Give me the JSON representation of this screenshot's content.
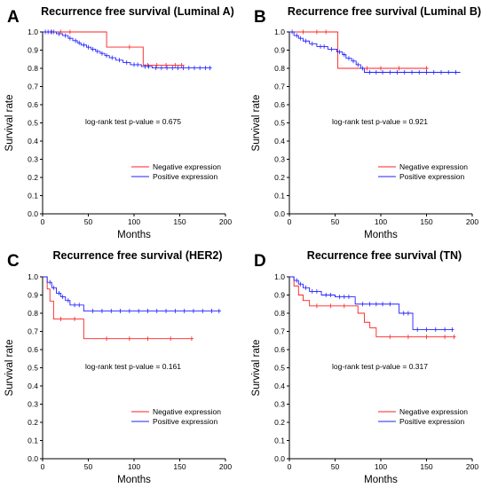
{
  "colors": {
    "negative": "#ff2020",
    "positive": "#2020ff",
    "axis": "#000000"
  },
  "chart_data": [
    {
      "type": "line",
      "subtype": "kaplan-meier step",
      "panel_label": "A",
      "title": "Recurrence free survival (Luminal A)",
      "xlabel": "Months",
      "ylabel": "Survival rate",
      "xlim": [
        0,
        200
      ],
      "ylim": [
        0,
        1.0
      ],
      "xticks": [
        "0",
        "50",
        "100",
        "150",
        "200"
      ],
      "yticks": [
        "0.0",
        "0.1",
        "0.2",
        "0.3",
        "0.4",
        "0.5",
        "0.6",
        "0.7",
        "0.8",
        "0.9",
        "1.0"
      ],
      "annotation": "log-rank test p-value = 0.675",
      "legend": [
        "Negative expression",
        "Positive expression"
      ],
      "legend_position": "bottom-right",
      "series": [
        {
          "name": "Negative expression",
          "color_key": "negative",
          "steps": [
            [
              0,
              1.0
            ],
            [
              70,
              0.917
            ],
            [
              110,
              0.817
            ],
            [
              155,
              0.817
            ]
          ],
          "censors": [
            [
              10,
              1.0
            ],
            [
              20,
              1.0
            ],
            [
              30,
              1.0
            ],
            [
              95,
              0.917
            ],
            [
              115,
              0.817
            ],
            [
              125,
              0.817
            ],
            [
              135,
              0.817
            ],
            [
              145,
              0.817
            ],
            [
              152,
              0.817
            ]
          ]
        },
        {
          "name": "Positive expression",
          "color_key": "positive",
          "steps": [
            [
              0,
              1.0
            ],
            [
              15,
              0.99
            ],
            [
              22,
              0.98
            ],
            [
              28,
              0.965
            ],
            [
              33,
              0.952
            ],
            [
              38,
              0.94
            ],
            [
              42,
              0.928
            ],
            [
              48,
              0.916
            ],
            [
              53,
              0.905
            ],
            [
              58,
              0.893
            ],
            [
              63,
              0.882
            ],
            [
              68,
              0.87
            ],
            [
              73,
              0.858
            ],
            [
              80,
              0.845
            ],
            [
              88,
              0.832
            ],
            [
              96,
              0.82
            ],
            [
              108,
              0.81
            ],
            [
              120,
              0.802
            ],
            [
              185,
              0.802
            ]
          ],
          "censors": [
            [
              3,
              1.0
            ],
            [
              6,
              1.0
            ],
            [
              9,
              1.0
            ],
            [
              12,
              1.0
            ],
            [
              18,
              0.99
            ],
            [
              25,
              0.98
            ],
            [
              30,
              0.965
            ],
            [
              36,
              0.952
            ],
            [
              40,
              0.94
            ],
            [
              45,
              0.928
            ],
            [
              50,
              0.916
            ],
            [
              55,
              0.905
            ],
            [
              60,
              0.893
            ],
            [
              65,
              0.882
            ],
            [
              70,
              0.87
            ],
            [
              76,
              0.858
            ],
            [
              84,
              0.845
            ],
            [
              92,
              0.832
            ],
            [
              100,
              0.82
            ],
            [
              104,
              0.82
            ],
            [
              112,
              0.81
            ],
            [
              116,
              0.81
            ],
            [
              124,
              0.802
            ],
            [
              130,
              0.802
            ],
            [
              136,
              0.802
            ],
            [
              142,
              0.802
            ],
            [
              148,
              0.802
            ],
            [
              154,
              0.802
            ],
            [
              160,
              0.802
            ],
            [
              166,
              0.802
            ],
            [
              172,
              0.802
            ],
            [
              178,
              0.802
            ],
            [
              183,
              0.802
            ]
          ]
        }
      ]
    },
    {
      "type": "line",
      "subtype": "kaplan-meier step",
      "panel_label": "B",
      "title": "Recurrence free survival (Luminal B)",
      "xlabel": "Months",
      "ylabel": "Survival rate",
      "xlim": [
        0,
        200
      ],
      "ylim": [
        0,
        1.0
      ],
      "xticks": [
        "0",
        "50",
        "100",
        "150",
        "200"
      ],
      "yticks": [
        "0.0",
        "0.1",
        "0.2",
        "0.3",
        "0.4",
        "0.5",
        "0.6",
        "0.7",
        "0.8",
        "0.9",
        "1.0"
      ],
      "annotation": "log-rank test p-value = 0.921",
      "legend": [
        "Negative expression",
        "Positive expression"
      ],
      "legend_position": "bottom-right",
      "series": [
        {
          "name": "Negative expression",
          "color_key": "negative",
          "steps": [
            [
              0,
              1.0
            ],
            [
              53,
              0.8
            ],
            [
              152,
              0.8
            ]
          ],
          "censors": [
            [
              15,
              1.0
            ],
            [
              30,
              1.0
            ],
            [
              40,
              1.0
            ],
            [
              85,
              0.8
            ],
            [
              100,
              0.8
            ],
            [
              120,
              0.8
            ],
            [
              150,
              0.8
            ]
          ]
        },
        {
          "name": "Positive expression",
          "color_key": "positive",
          "steps": [
            [
              0,
              1.0
            ],
            [
              5,
              0.98
            ],
            [
              10,
              0.965
            ],
            [
              15,
              0.95
            ],
            [
              22,
              0.935
            ],
            [
              30,
              0.92
            ],
            [
              42,
              0.905
            ],
            [
              52,
              0.89
            ],
            [
              58,
              0.875
            ],
            [
              62,
              0.855
            ],
            [
              68,
              0.84
            ],
            [
              73,
              0.82
            ],
            [
              78,
              0.8
            ],
            [
              82,
              0.778
            ],
            [
              187,
              0.778
            ]
          ],
          "censors": [
            [
              3,
              1.0
            ],
            [
              8,
              0.98
            ],
            [
              12,
              0.965
            ],
            [
              18,
              0.95
            ],
            [
              25,
              0.935
            ],
            [
              34,
              0.92
            ],
            [
              38,
              0.92
            ],
            [
              46,
              0.905
            ],
            [
              55,
              0.89
            ],
            [
              60,
              0.875
            ],
            [
              65,
              0.855
            ],
            [
              70,
              0.84
            ],
            [
              75,
              0.82
            ],
            [
              80,
              0.8
            ],
            [
              88,
              0.778
            ],
            [
              95,
              0.778
            ],
            [
              102,
              0.778
            ],
            [
              110,
              0.778
            ],
            [
              118,
              0.778
            ],
            [
              126,
              0.778
            ],
            [
              134,
              0.778
            ],
            [
              142,
              0.778
            ],
            [
              150,
              0.778
            ],
            [
              158,
              0.778
            ],
            [
              166,
              0.778
            ],
            [
              174,
              0.778
            ],
            [
              182,
              0.778
            ]
          ]
        }
      ]
    },
    {
      "type": "line",
      "subtype": "kaplan-meier step",
      "panel_label": "C",
      "title": "Recurrence free survival (HER2)",
      "xlabel": "Months",
      "ylabel": "Survival rate",
      "xlim": [
        0,
        200
      ],
      "ylim": [
        0,
        1.0
      ],
      "xticks": [
        "0",
        "50",
        "100",
        "150",
        "200"
      ],
      "yticks": [
        "0.0",
        "0.1",
        "0.2",
        "0.3",
        "0.4",
        "0.5",
        "0.6",
        "0.7",
        "0.8",
        "0.9",
        "1.0"
      ],
      "annotation": "log-rank test p-value = 0.161",
      "legend": [
        "Negative expression",
        "Positive expression"
      ],
      "legend_position": "bottom-right",
      "series": [
        {
          "name": "Negative expression",
          "color_key": "negative",
          "steps": [
            [
              0,
              1.0
            ],
            [
              5,
              0.933
            ],
            [
              8,
              0.867
            ],
            [
              12,
              0.768
            ],
            [
              45,
              0.66
            ],
            [
              165,
              0.66
            ]
          ],
          "censors": [
            [
              20,
              0.768
            ],
            [
              35,
              0.768
            ],
            [
              70,
              0.66
            ],
            [
              95,
              0.66
            ],
            [
              115,
              0.66
            ],
            [
              140,
              0.66
            ],
            [
              163,
              0.66
            ]
          ]
        },
        {
          "name": "Positive expression",
          "color_key": "positive",
          "steps": [
            [
              0,
              1.0
            ],
            [
              5,
              0.97
            ],
            [
              10,
              0.94
            ],
            [
              15,
              0.91
            ],
            [
              20,
              0.89
            ],
            [
              25,
              0.87
            ],
            [
              30,
              0.845
            ],
            [
              45,
              0.812
            ],
            [
              195,
              0.812
            ]
          ],
          "censors": [
            [
              8,
              0.97
            ],
            [
              12,
              0.94
            ],
            [
              18,
              0.91
            ],
            [
              22,
              0.89
            ],
            [
              28,
              0.87
            ],
            [
              35,
              0.845
            ],
            [
              40,
              0.845
            ],
            [
              55,
              0.812
            ],
            [
              65,
              0.812
            ],
            [
              75,
              0.812
            ],
            [
              85,
              0.812
            ],
            [
              95,
              0.812
            ],
            [
              105,
              0.812
            ],
            [
              115,
              0.812
            ],
            [
              125,
              0.812
            ],
            [
              135,
              0.812
            ],
            [
              145,
              0.812
            ],
            [
              155,
              0.812
            ],
            [
              165,
              0.812
            ],
            [
              175,
              0.812
            ],
            [
              185,
              0.812
            ],
            [
              193,
              0.812
            ]
          ]
        }
      ]
    },
    {
      "type": "line",
      "subtype": "kaplan-meier step",
      "panel_label": "D",
      "title": "Recurrence free survival (TN)",
      "xlabel": "Months",
      "ylabel": "Survival rate",
      "xlim": [
        0,
        200
      ],
      "ylim": [
        0,
        1.0
      ],
      "xticks": [
        "0",
        "50",
        "100",
        "150",
        "200"
      ],
      "yticks": [
        "0.0",
        "0.1",
        "0.2",
        "0.3",
        "0.4",
        "0.5",
        "0.6",
        "0.7",
        "0.8",
        "0.9",
        "1.0"
      ],
      "annotation": "log-rank test p-value = 0.317",
      "legend": [
        "Negative expression",
        "Positive expression"
      ],
      "legend_position": "bottom-right",
      "series": [
        {
          "name": "Negative expression",
          "color_key": "negative",
          "steps": [
            [
              0,
              1.0
            ],
            [
              5,
              0.95
            ],
            [
              10,
              0.9
            ],
            [
              15,
              0.87
            ],
            [
              22,
              0.84
            ],
            [
              75,
              0.8
            ],
            [
              82,
              0.75
            ],
            [
              88,
              0.72
            ],
            [
              95,
              0.67
            ],
            [
              182,
              0.67
            ]
          ],
          "censors": [
            [
              30,
              0.84
            ],
            [
              45,
              0.84
            ],
            [
              60,
              0.84
            ],
            [
              110,
              0.67
            ],
            [
              130,
              0.67
            ],
            [
              150,
              0.67
            ],
            [
              170,
              0.67
            ],
            [
              180,
              0.67
            ]
          ]
        },
        {
          "name": "Positive expression",
          "color_key": "positive",
          "steps": [
            [
              0,
              1.0
            ],
            [
              5,
              0.98
            ],
            [
              10,
              0.96
            ],
            [
              15,
              0.94
            ],
            [
              22,
              0.92
            ],
            [
              35,
              0.9
            ],
            [
              50,
              0.89
            ],
            [
              72,
              0.85
            ],
            [
              120,
              0.8
            ],
            [
              135,
              0.71
            ],
            [
              180,
              0.71
            ]
          ],
          "censors": [
            [
              8,
              0.98
            ],
            [
              12,
              0.96
            ],
            [
              18,
              0.94
            ],
            [
              25,
              0.92
            ],
            [
              30,
              0.92
            ],
            [
              40,
              0.9
            ],
            [
              45,
              0.9
            ],
            [
              55,
              0.89
            ],
            [
              60,
              0.89
            ],
            [
              65,
              0.89
            ],
            [
              80,
              0.85
            ],
            [
              88,
              0.85
            ],
            [
              95,
              0.85
            ],
            [
              102,
              0.85
            ],
            [
              110,
              0.85
            ],
            [
              125,
              0.8
            ],
            [
              130,
              0.8
            ],
            [
              140,
              0.71
            ],
            [
              150,
              0.71
            ],
            [
              160,
              0.71
            ],
            [
              170,
              0.71
            ],
            [
              178,
              0.71
            ]
          ]
        }
      ]
    }
  ]
}
